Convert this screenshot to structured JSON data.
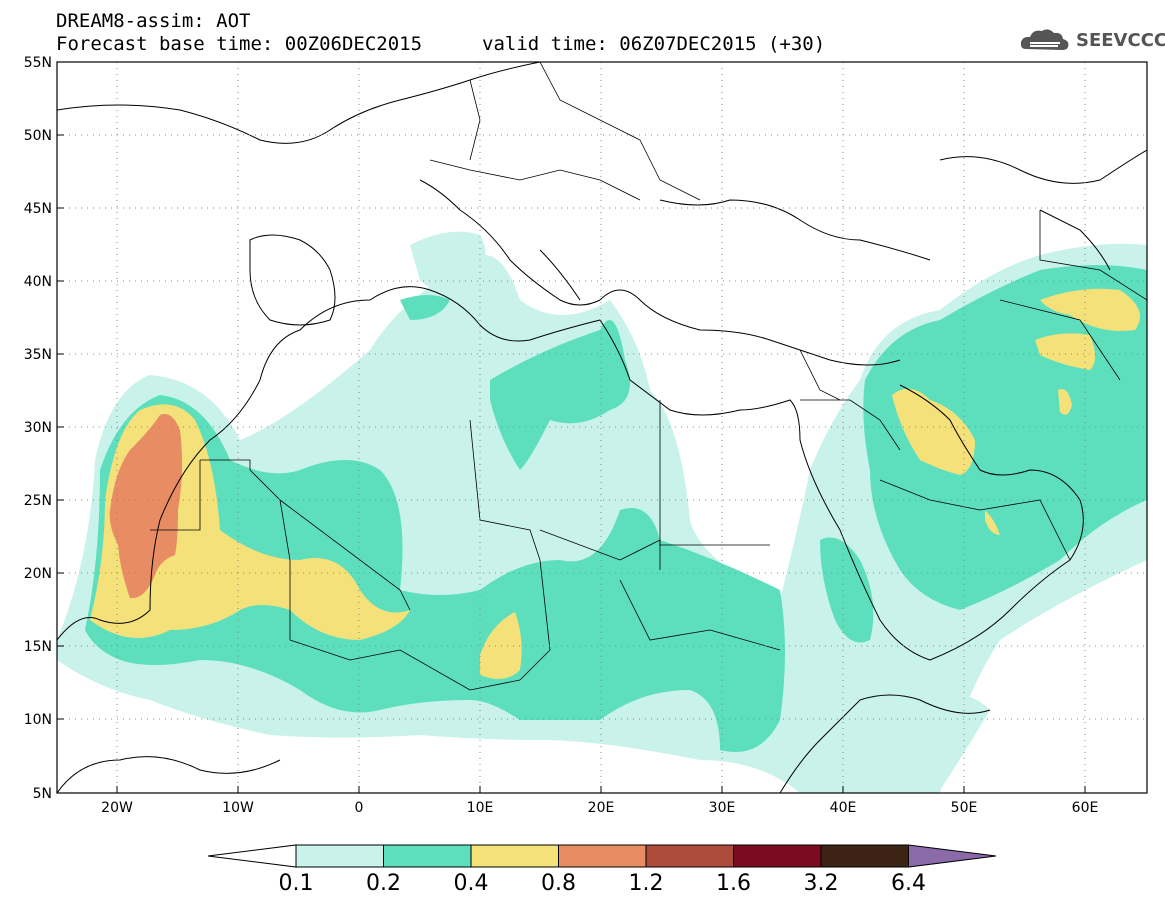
{
  "header": {
    "title": "DREAM8-assim: AOT",
    "base_time": "Forecast base time: 00Z06DEC2015",
    "valid_time": "valid time: 06Z07DEC2015 (+30)",
    "logo": "SEEVCCC"
  },
  "map": {
    "lat_labels": [
      "55N",
      "50N",
      "45N",
      "40N",
      "35N",
      "30N",
      "25N",
      "20N",
      "15N",
      "10N",
      "5N"
    ],
    "lon_labels": [
      "20W",
      "10W",
      "0",
      "10E",
      "20E",
      "30E",
      "40E",
      "50E",
      "60E"
    ],
    "extent": {
      "lon": [
        -25,
        65
      ],
      "lat": [
        5,
        55
      ]
    },
    "grid": "dotted"
  },
  "colorbar": {
    "labels": [
      "0.1",
      "0.2",
      "0.4",
      "0.8",
      "1.2",
      "1.6",
      "3.2",
      "6.4"
    ],
    "colors": [
      "#ffffff",
      "#c8f2ea",
      "#5ddfbe",
      "#f5e17a",
      "#e88c64",
      "#ae4c3b",
      "#7a0b20",
      "#3c2314",
      "#8a6aa8"
    ]
  },
  "colors": {
    "c1": "#c8f2ea",
    "c2": "#5ddfbe",
    "c3": "#f5e17a",
    "c4": "#e88c64"
  }
}
